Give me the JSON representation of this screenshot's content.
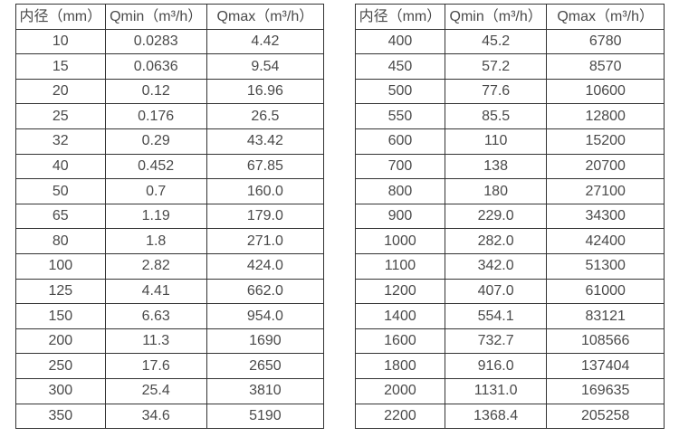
{
  "colors": {
    "border": "#333333",
    "text": "#4a4a4a",
    "background": "#ffffff"
  },
  "table_left": {
    "headers": [
      "内径（mm）",
      "Qmin（m³/h）",
      "Qmax（m³/h）"
    ],
    "rows": [
      [
        "10",
        "0.0283",
        "4.42"
      ],
      [
        "15",
        "0.0636",
        "9.54"
      ],
      [
        "20",
        "0.12",
        "16.96"
      ],
      [
        "25",
        "0.176",
        "26.5"
      ],
      [
        "32",
        "0.29",
        "43.42"
      ],
      [
        "40",
        "0.452",
        "67.85"
      ],
      [
        "50",
        "0.7",
        "160.0"
      ],
      [
        "65",
        "1.19",
        "179.0"
      ],
      [
        "80",
        "1.8",
        "271.0"
      ],
      [
        "100",
        "2.82",
        "424.0"
      ],
      [
        "125",
        "4.41",
        "662.0"
      ],
      [
        "150",
        "6.63",
        "954.0"
      ],
      [
        "200",
        "11.3",
        "1690"
      ],
      [
        "250",
        "17.6",
        "2650"
      ],
      [
        "300",
        "25.4",
        "3810"
      ],
      [
        "350",
        "34.6",
        "5190"
      ]
    ]
  },
  "table_right": {
    "headers": [
      "内径（mm）",
      "Qmin（m³/h）",
      "Qmax（m³/h）"
    ],
    "rows": [
      [
        "400",
        "45.2",
        "6780"
      ],
      [
        "450",
        "57.2",
        "8570"
      ],
      [
        "500",
        "77.6",
        "10600"
      ],
      [
        "550",
        "85.5",
        "12800"
      ],
      [
        "600",
        "110",
        "15200"
      ],
      [
        "700",
        "138",
        "20700"
      ],
      [
        "800",
        "180",
        "27100"
      ],
      [
        "900",
        "229.0",
        "34300"
      ],
      [
        "1000",
        "282.0",
        "42400"
      ],
      [
        "1100",
        "342.0",
        "51300"
      ],
      [
        "1200",
        "407.0",
        "61000"
      ],
      [
        "1400",
        "554.1",
        "83121"
      ],
      [
        "1600",
        "732.7",
        "108566"
      ],
      [
        "1800",
        "916.0",
        "137404"
      ],
      [
        "2000",
        "1131.0",
        "169635"
      ],
      [
        "2200",
        "1368.4",
        "205258"
      ]
    ]
  }
}
